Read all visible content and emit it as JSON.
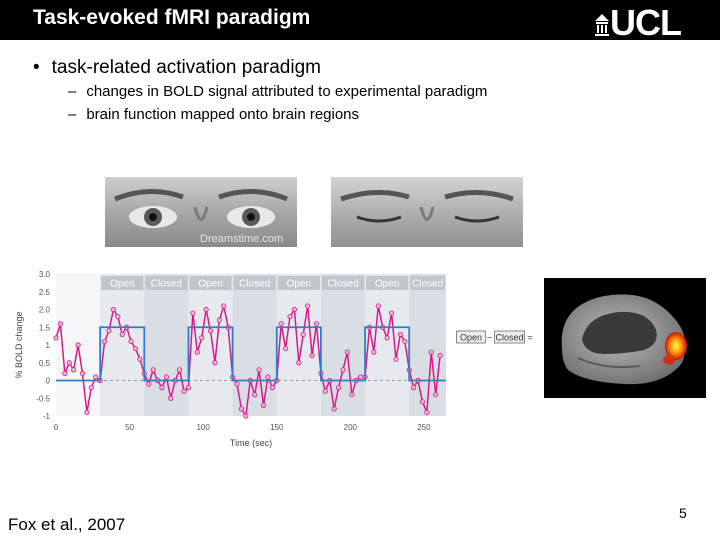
{
  "header": {
    "title": "Task-evoked fMRI paradigm",
    "logo": "UCL"
  },
  "bullets": {
    "main": "task-related activation paradigm",
    "subs": [
      "changes in BOLD signal attributed to experimental paradigm",
      "brain function mapped onto brain regions"
    ]
  },
  "photos": {
    "watermark": "Dreamstime.com"
  },
  "chart_data": {
    "type": "line",
    "ylabel": "% BOLD change",
    "xlabel": "Time (sec)",
    "xlim": [
      0,
      265
    ],
    "ylim": [
      -1.0,
      3.0
    ],
    "x_ticks": [
      0,
      50,
      100,
      150,
      200,
      250
    ],
    "y_ticks": [
      3.0,
      2.5,
      2.0,
      1.5,
      1.0,
      0.5,
      0,
      -0.5,
      -1
    ],
    "y_tick_labels": [
      "3.0",
      "2.5",
      "2.0",
      "1.5",
      "1",
      "0.5",
      "0",
      "-0.5",
      "-1"
    ],
    "blocks": [
      {
        "label": "Open",
        "start": 30,
        "end": 60
      },
      {
        "label": "Closed",
        "start": 60,
        "end": 90
      },
      {
        "label": "Open",
        "start": 90,
        "end": 120
      },
      {
        "label": "Closed",
        "start": 120,
        "end": 150
      },
      {
        "label": "Open",
        "start": 150,
        "end": 180
      },
      {
        "label": "Closed",
        "start": 180,
        "end": 210
      },
      {
        "label": "Open",
        "start": 210,
        "end": 240
      },
      {
        "label": "Closed",
        "start": 240,
        "end": 265
      }
    ],
    "series": [
      {
        "color": "#d61a8a",
        "x": [
          0,
          3,
          6,
          9,
          12,
          15,
          18,
          21,
          24,
          27,
          30,
          33,
          36,
          39,
          42,
          45,
          48,
          51,
          54,
          57,
          60,
          63,
          66,
          69,
          72,
          75,
          78,
          81,
          84,
          87,
          90,
          93,
          96,
          99,
          102,
          105,
          108,
          111,
          114,
          117,
          120,
          123,
          126,
          129,
          132,
          135,
          138,
          141,
          144,
          147,
          150,
          153,
          156,
          159,
          162,
          165,
          168,
          171,
          174,
          177,
          180,
          183,
          186,
          189,
          192,
          195,
          198,
          201,
          204,
          207,
          210,
          213,
          216,
          219,
          222,
          225,
          228,
          231,
          234,
          237,
          240,
          243,
          246,
          249,
          252,
          255,
          258,
          261
        ],
        "y": [
          1.2,
          1.6,
          0.2,
          0.5,
          0.3,
          1.0,
          0.2,
          -0.9,
          -0.2,
          0.1,
          0.0,
          1.1,
          1.4,
          2.0,
          1.8,
          1.3,
          1.5,
          1.1,
          0.9,
          0.6,
          0.2,
          -0.1,
          0.3,
          0.0,
          -0.2,
          0.1,
          -0.5,
          0.0,
          0.3,
          -0.3,
          -0.2,
          1.9,
          0.8,
          1.2,
          2.0,
          1.4,
          0.5,
          1.7,
          2.1,
          1.5,
          0.1,
          -0.1,
          -0.8,
          -1.0,
          0.0,
          -0.4,
          0.3,
          -0.7,
          0.1,
          -0.2,
          0.0,
          1.6,
          0.9,
          1.8,
          2.0,
          0.5,
          1.3,
          2.1,
          0.7,
          1.6,
          0.2,
          -0.3,
          0.0,
          -0.8,
          -0.2,
          0.3,
          0.8,
          -0.4,
          0.0,
          0.1,
          0.1,
          1.5,
          0.8,
          2.1,
          1.5,
          1.2,
          1.9,
          0.6,
          1.3,
          1.1,
          0.3,
          -0.2,
          0.0,
          -0.6,
          -0.9,
          0.8,
          -0.4,
          0.7
        ]
      },
      {
        "color": "#2f7fc1",
        "x": [
          0,
          30,
          30,
          60,
          60,
          90,
          90,
          120,
          120,
          150,
          150,
          180,
          180,
          210,
          210,
          240,
          240,
          265
        ],
        "y": [
          0,
          0,
          1.5,
          1.5,
          0,
          0,
          1.5,
          1.5,
          0,
          0,
          1.5,
          1.5,
          0,
          0,
          1.5,
          1.5,
          0,
          0
        ]
      }
    ],
    "baseline": 0
  },
  "contrast_label": {
    "open": "Open",
    "closed": "Closed",
    "minus": "−",
    "equals": "="
  },
  "footer": {
    "citation": "Fox et al., 2007",
    "page": "5"
  }
}
